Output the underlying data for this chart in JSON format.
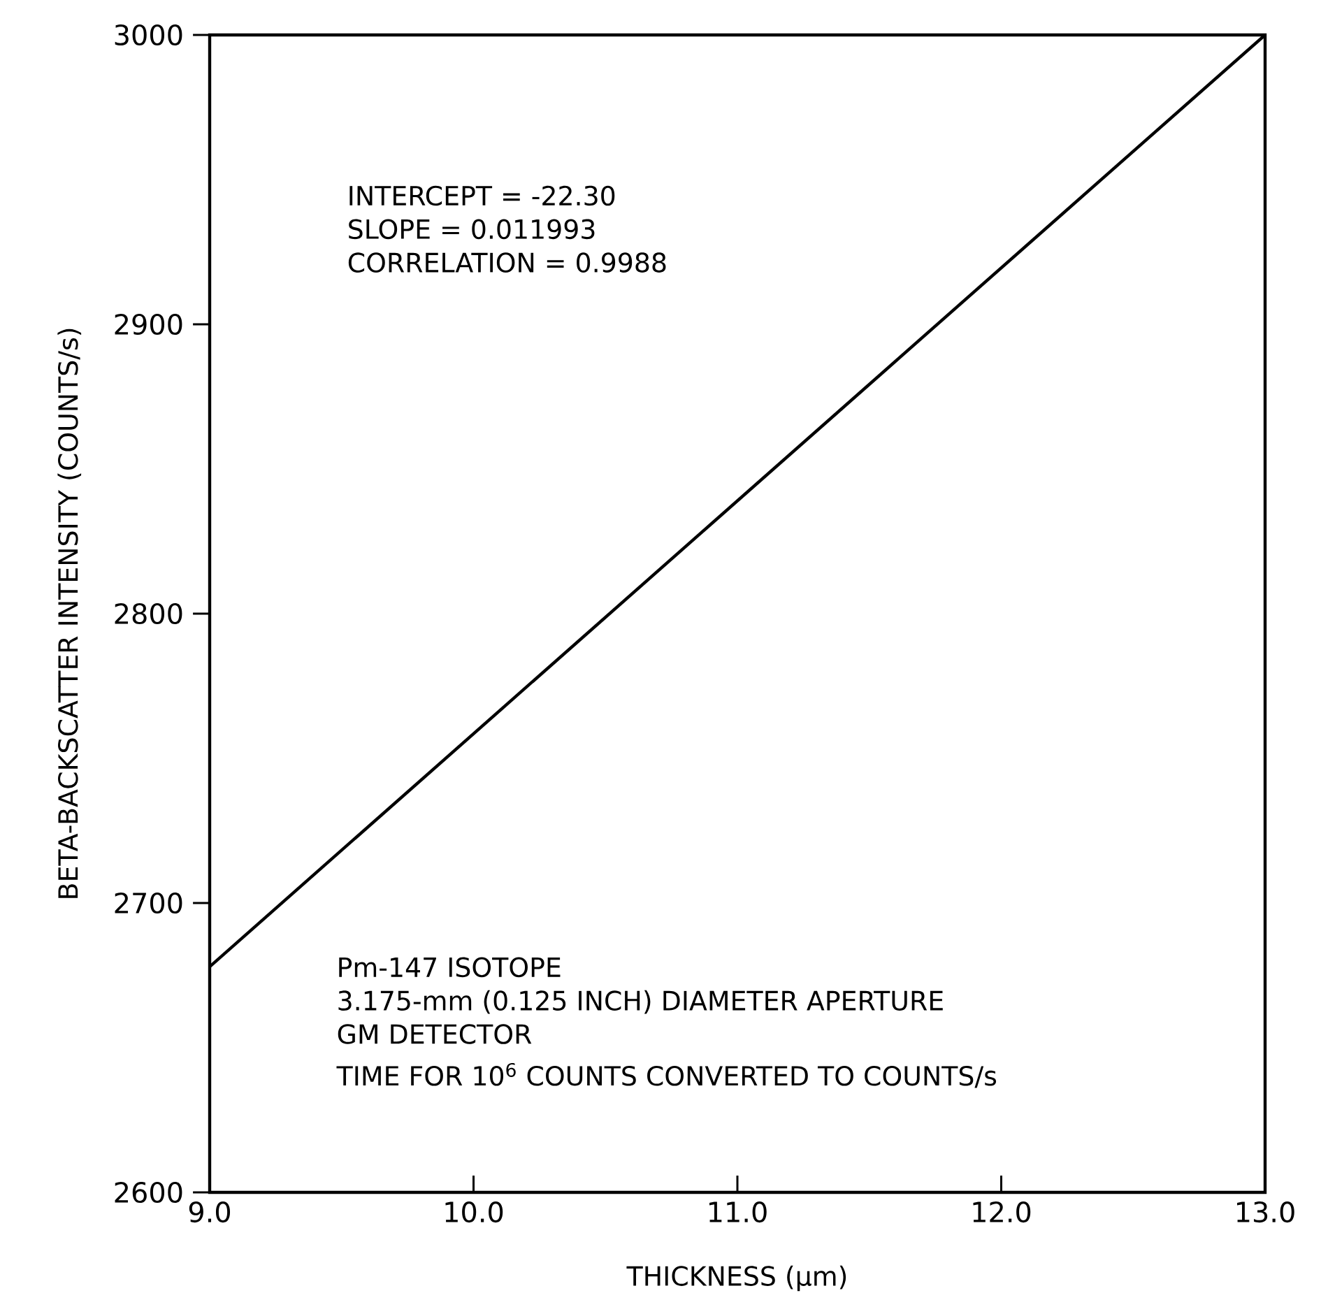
{
  "chart_data": {
    "type": "line",
    "xlabel": "THICKNESS (µm)",
    "ylabel": "BETA-BACKSCATTER INTENSITY (COUNTS/s)",
    "x": [
      9.0,
      13.0
    ],
    "series": [
      {
        "color": "#000000",
        "values": [
          2678,
          3000
        ]
      }
    ],
    "xlim": [
      9.0,
      13.0
    ],
    "ylim": [
      2600,
      3000
    ],
    "xticks": [
      {
        "value": 9,
        "label": "9.0"
      },
      {
        "value": 10,
        "label": "10.0"
      },
      {
        "value": 11,
        "label": "11.0"
      },
      {
        "value": 12,
        "label": "12.0"
      },
      {
        "value": 13,
        "label": "13.0"
      }
    ],
    "yticks": [
      2600,
      2700,
      2800,
      2900,
      3000
    ],
    "grid": false,
    "marker": "none",
    "line_style": "solid",
    "annotations": [
      "INTERCEPT = -22.30",
      "SLOPE = 0.011993",
      "CORRELATION = 0.9988",
      "Pm-147 ISOTOPE",
      "3.175-mm (0.125 INCH) DIAMETER APERTURE",
      "GM DETECTOR",
      "TIME FOR 10$^{6}$ COUNTS CONVERTED TO COUNTS/s"
    ]
  }
}
